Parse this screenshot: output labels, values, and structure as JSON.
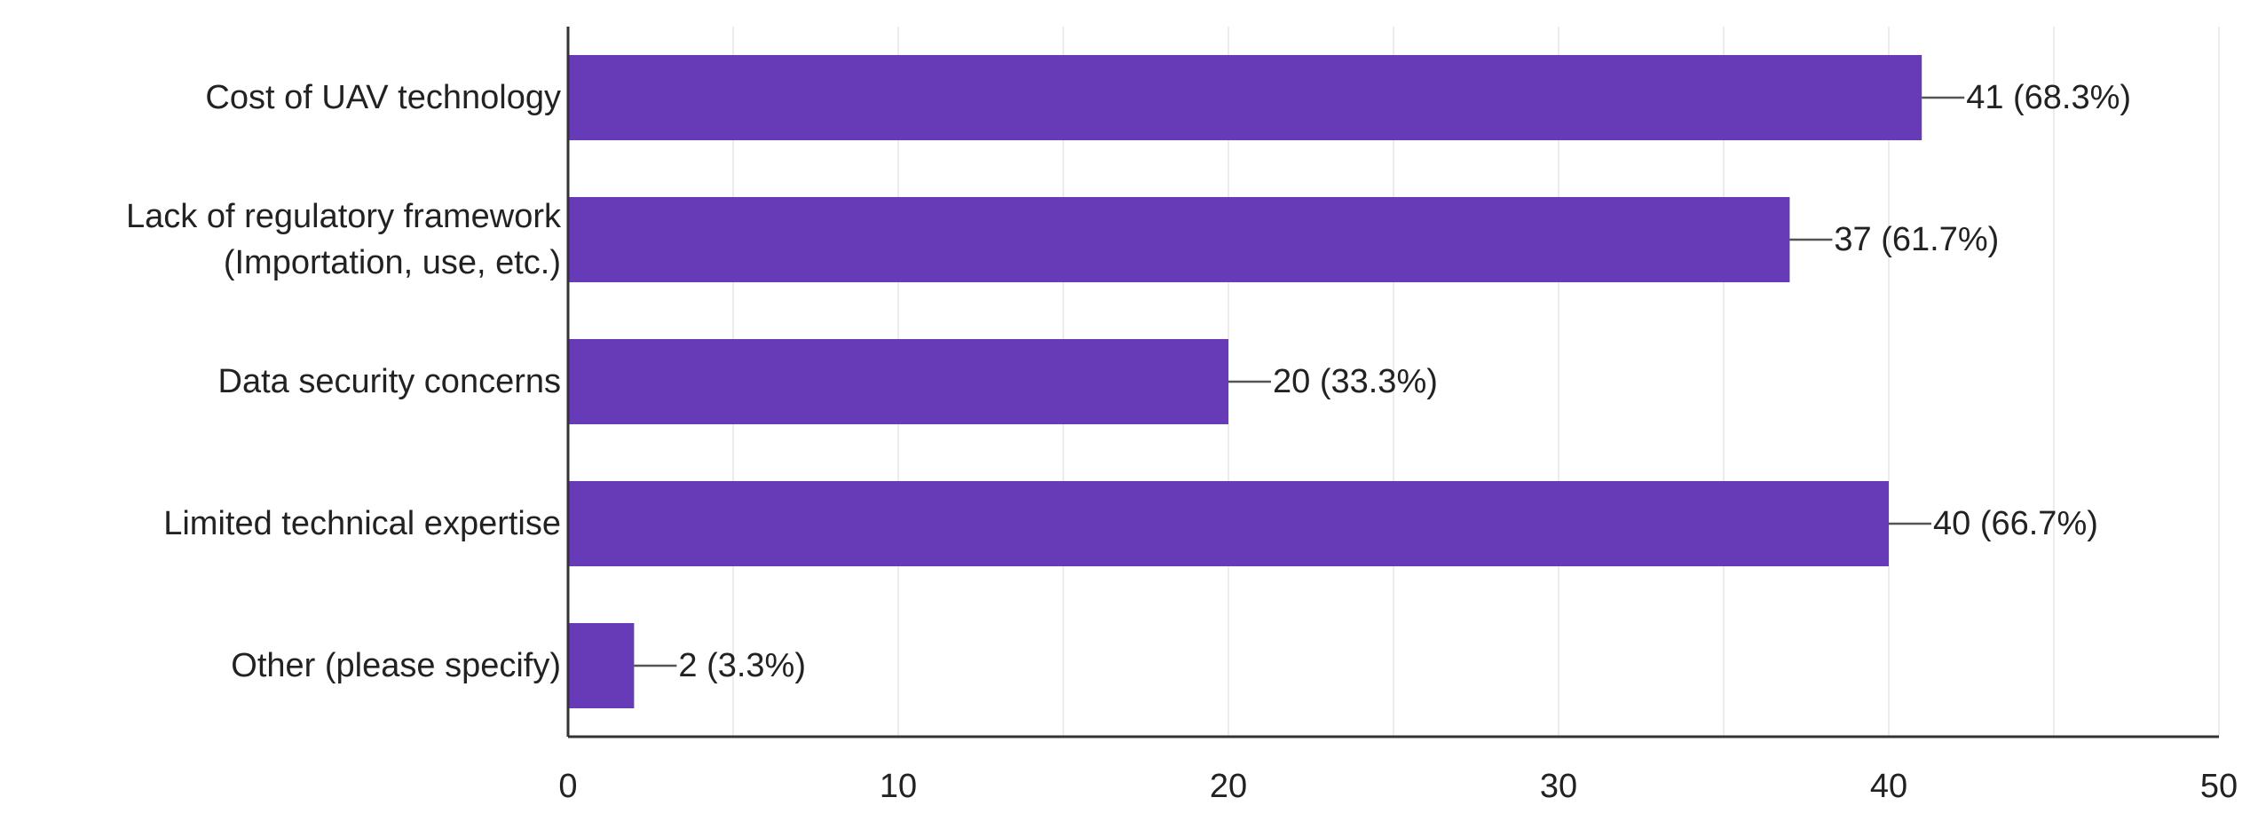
{
  "chart_data": {
    "type": "bar",
    "orientation": "horizontal",
    "categories": [
      [
        "Cost of UAV technology"
      ],
      [
        "Lack of regulatory framework",
        "(Importation, use, etc.)"
      ],
      [
        "Data security concerns"
      ],
      [
        "Limited technical expertise"
      ],
      [
        "Other (please specify)"
      ]
    ],
    "values": [
      41,
      37,
      20,
      40,
      2
    ],
    "data_labels": [
      "41 (68.3%)",
      "37 (61.7%)",
      "20 (33.3%)",
      "40 (66.7%)",
      "2 (3.3%)"
    ],
    "x_ticks": [
      "0",
      "10",
      "20",
      "30",
      "40",
      "50"
    ],
    "xlim": [
      0,
      50
    ],
    "minor_grid_step": 5,
    "grid": true,
    "legend": "none",
    "title": "",
    "xlabel": "",
    "ylabel": ""
  },
  "colors": {
    "bar": "#673ab7",
    "grid": "#ececec",
    "axis": "#333333",
    "text": "#222222",
    "leader": "#555555"
  }
}
